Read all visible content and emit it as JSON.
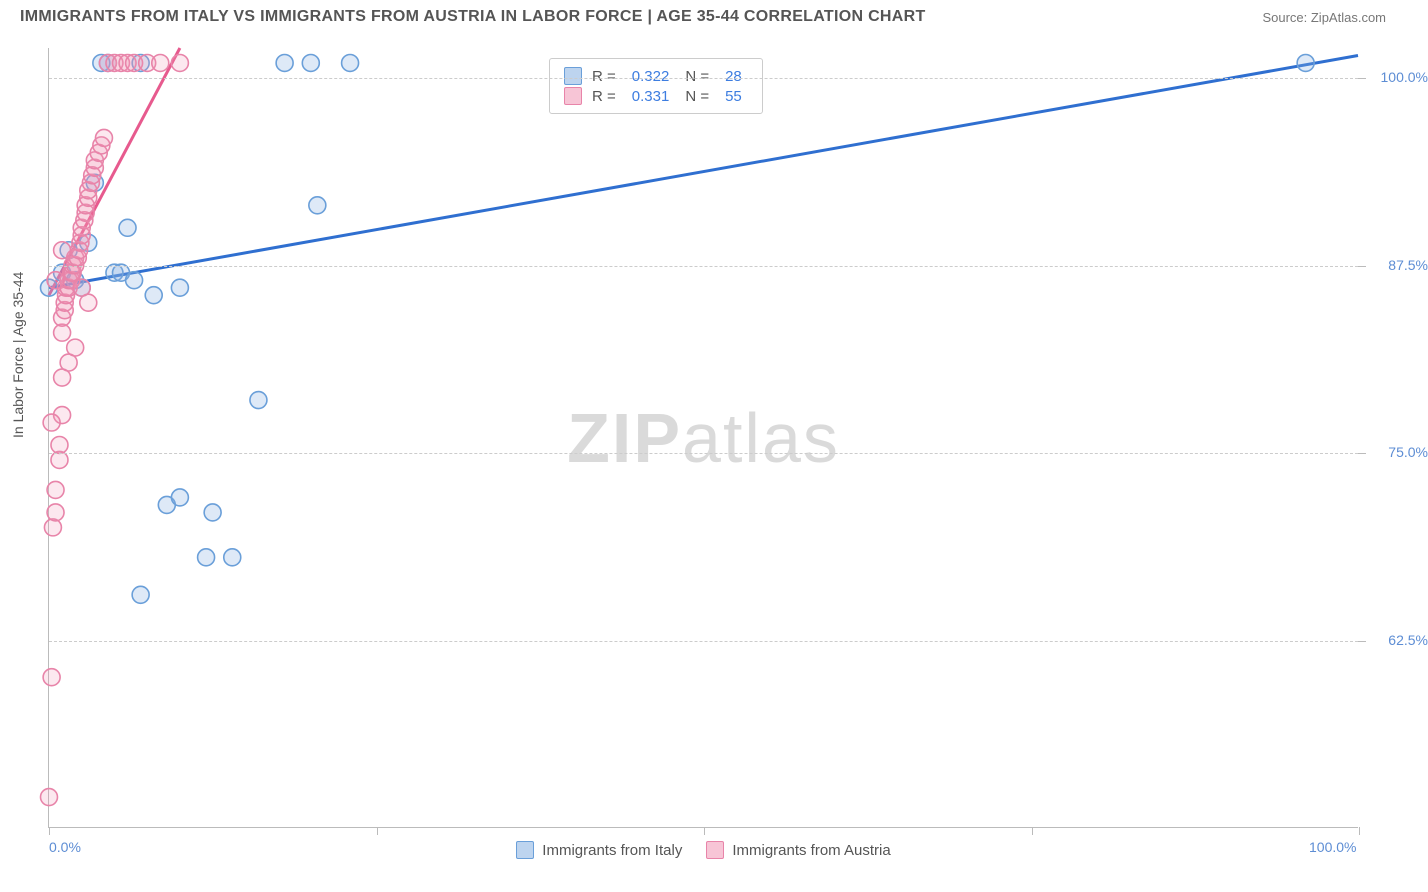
{
  "title": "IMMIGRANTS FROM ITALY VS IMMIGRANTS FROM AUSTRIA IN LABOR FORCE | AGE 35-44 CORRELATION CHART",
  "source": "Source: ZipAtlas.com",
  "ylabel": "In Labor Force | Age 35-44",
  "watermark": "ZIPatlas",
  "chart": {
    "type": "scatter-with-trendlines",
    "xlim": [
      0,
      100
    ],
    "ylim": [
      50,
      102
    ],
    "ytick_values": [
      62.5,
      75.0,
      87.5,
      100.0
    ],
    "ytick_labels": [
      "62.5%",
      "75.0%",
      "87.5%",
      "100.0%"
    ],
    "xtick_major": [
      0,
      100
    ],
    "xtick_labels": [
      "0.0%",
      "100.0%"
    ],
    "xtick_minor": [
      25,
      50,
      75
    ],
    "grid_color": "#cccccc",
    "background_color": "#ffffff",
    "marker_radius": 8.5,
    "series": [
      {
        "name": "Immigrants from Italy",
        "color_fill": "rgba(135,176,226,0.28)",
        "color_stroke": "#6a9fd9",
        "R": "0.322",
        "N": "28",
        "trend": {
          "x1": 0,
          "y1": 86.0,
          "x2": 100,
          "y2": 101.5,
          "color": "#2f6fd0",
          "width": 3
        },
        "points": [
          [
            0.0,
            86.0
          ],
          [
            1.0,
            87.0
          ],
          [
            1.5,
            88.5
          ],
          [
            2.0,
            86.5
          ],
          [
            2.5,
            86.0
          ],
          [
            3.0,
            89.0
          ],
          [
            4.0,
            101.0
          ],
          [
            4.5,
            101.0
          ],
          [
            5.0,
            87.0
          ],
          [
            5.5,
            87.0
          ],
          [
            6.0,
            90.0
          ],
          [
            6.5,
            86.5
          ],
          [
            7.0,
            101.0
          ],
          [
            8.0,
            85.5
          ],
          [
            9.0,
            71.5
          ],
          [
            10.0,
            72.0
          ],
          [
            10.0,
            86.0
          ],
          [
            12.0,
            68.0
          ],
          [
            14.0,
            68.0
          ],
          [
            16.0,
            78.5
          ],
          [
            18.0,
            101.0
          ],
          [
            20.0,
            101.0
          ],
          [
            20.5,
            91.5
          ],
          [
            23.0,
            101.0
          ],
          [
            7.0,
            65.5
          ],
          [
            96.0,
            101.0
          ],
          [
            3.5,
            93.0
          ],
          [
            12.5,
            71.0
          ]
        ]
      },
      {
        "name": "Immigrants from Austria",
        "color_fill": "rgba(240,150,180,0.22)",
        "color_stroke": "#e884a9",
        "R": "0.331",
        "N": "55",
        "trend": {
          "x1": 0,
          "y1": 85.5,
          "x2": 10,
          "y2": 102.0,
          "color": "#e75a8e",
          "width": 3
        },
        "points": [
          [
            0.0,
            52.0
          ],
          [
            0.2,
            60.0
          ],
          [
            0.3,
            70.0
          ],
          [
            0.5,
            71.0
          ],
          [
            0.5,
            72.5
          ],
          [
            0.8,
            74.5
          ],
          [
            0.8,
            75.5
          ],
          [
            1.0,
            77.5
          ],
          [
            1.0,
            83.0
          ],
          [
            1.0,
            84.0
          ],
          [
            1.2,
            84.5
          ],
          [
            1.2,
            85.0
          ],
          [
            1.3,
            85.5
          ],
          [
            1.3,
            86.0
          ],
          [
            1.5,
            86.0
          ],
          [
            1.5,
            86.5
          ],
          [
            1.7,
            86.5
          ],
          [
            1.7,
            87.0
          ],
          [
            1.8,
            87.0
          ],
          [
            1.8,
            87.5
          ],
          [
            2.0,
            87.5
          ],
          [
            2.0,
            88.0
          ],
          [
            2.2,
            88.0
          ],
          [
            2.3,
            88.5
          ],
          [
            2.4,
            89.0
          ],
          [
            2.5,
            89.5
          ],
          [
            2.5,
            90.0
          ],
          [
            2.7,
            90.5
          ],
          [
            2.8,
            91.0
          ],
          [
            2.8,
            91.5
          ],
          [
            3.0,
            92.0
          ],
          [
            3.0,
            92.5
          ],
          [
            3.2,
            93.0
          ],
          [
            3.3,
            93.5
          ],
          [
            3.5,
            94.0
          ],
          [
            3.5,
            94.5
          ],
          [
            3.8,
            95.0
          ],
          [
            4.0,
            95.5
          ],
          [
            4.2,
            96.0
          ],
          [
            2.0,
            82.0
          ],
          [
            1.0,
            88.5
          ],
          [
            4.5,
            101.0
          ],
          [
            5.0,
            101.0
          ],
          [
            5.5,
            101.0
          ],
          [
            6.0,
            101.0
          ],
          [
            6.5,
            101.0
          ],
          [
            7.5,
            101.0
          ],
          [
            8.5,
            101.0
          ],
          [
            10.0,
            101.0
          ],
          [
            0.5,
            86.5
          ],
          [
            1.0,
            80.0
          ],
          [
            2.5,
            86.0
          ],
          [
            3.0,
            85.0
          ],
          [
            0.2,
            77.0
          ],
          [
            1.5,
            81.0
          ]
        ]
      }
    ]
  },
  "legend_top": [
    {
      "swatch_fill": "rgba(135,176,226,0.55)",
      "swatch_border": "#6a9fd9",
      "R_label": "R =",
      "R": "0.322",
      "N_label": "N =",
      "N": "28"
    },
    {
      "swatch_fill": "rgba(240,150,180,0.55)",
      "swatch_border": "#e884a9",
      "R_label": "R =",
      "R": "0.331",
      "N_label": "N =",
      "N": "55"
    }
  ],
  "legend_bottom": [
    {
      "swatch_fill": "rgba(135,176,226,0.55)",
      "swatch_border": "#6a9fd9",
      "label": "Immigrants from Italy"
    },
    {
      "swatch_fill": "rgba(240,150,180,0.55)",
      "swatch_border": "#e884a9",
      "label": "Immigrants from Austria"
    }
  ]
}
